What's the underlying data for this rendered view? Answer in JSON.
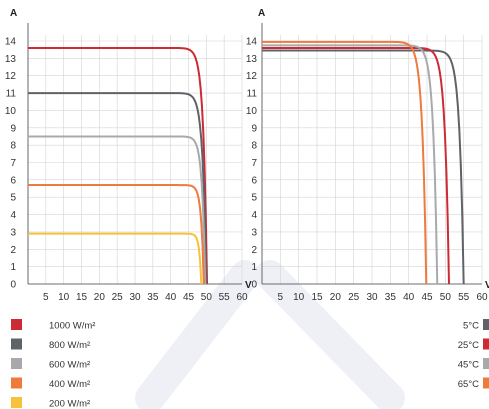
{
  "chart_data": [
    {
      "type": "line",
      "title": "",
      "ylabel": "A",
      "xlabel": "V",
      "xlim": [
        0,
        60
      ],
      "ylim": [
        0,
        14
      ],
      "x_ticks": [
        5,
        10,
        15,
        20,
        25,
        30,
        35,
        40,
        45,
        50,
        55,
        60
      ],
      "y_ticks": [
        0,
        1,
        2,
        3,
        4,
        5,
        6,
        7,
        8,
        9,
        10,
        11,
        12,
        13,
        14
      ],
      "grid": true,
      "legend_position": "bottom-left",
      "series": [
        {
          "name": "1000 W/m²",
          "color": "#cc2b36",
          "isc": 13.6,
          "voc": 50.2,
          "vknee": 40
        },
        {
          "name": "800 W/m²",
          "color": "#5f6368",
          "isc": 11.0,
          "voc": 50.0,
          "vknee": 40
        },
        {
          "name": "600 W/m²",
          "color": "#a7a9ac",
          "isc": 8.5,
          "voc": 49.7,
          "vknee": 41
        },
        {
          "name": "400 W/m²",
          "color": "#ee7a3c",
          "isc": 5.7,
          "voc": 49.3,
          "vknee": 42
        },
        {
          "name": "200 W/m²",
          "color": "#f6c23c",
          "isc": 2.9,
          "voc": 48.6,
          "vknee": 43
        }
      ]
    },
    {
      "type": "line",
      "title": "",
      "ylabel": "A",
      "xlabel": "V",
      "xlim": [
        0,
        60
      ],
      "ylim": [
        0,
        14
      ],
      "x_ticks": [
        5,
        10,
        15,
        20,
        25,
        30,
        35,
        40,
        45,
        50,
        55,
        60
      ],
      "y_ticks": [
        0,
        1,
        2,
        3,
        4,
        5,
        6,
        7,
        8,
        9,
        10,
        11,
        12,
        13,
        14
      ],
      "grid": true,
      "legend_position": "bottom-right",
      "series": [
        {
          "name": "5°C",
          "color": "#5f6368",
          "isc": 13.45,
          "voc": 55.0,
          "vknee": 44
        },
        {
          "name": "25°C",
          "color": "#cc2b36",
          "isc": 13.6,
          "voc": 51.0,
          "vknee": 40
        },
        {
          "name": "45°C",
          "color": "#a7a9ac",
          "isc": 13.75,
          "voc": 47.8,
          "vknee": 37
        },
        {
          "name": "65°C",
          "color": "#ee7a3c",
          "isc": 13.95,
          "voc": 44.8,
          "vknee": 34
        }
      ]
    }
  ]
}
